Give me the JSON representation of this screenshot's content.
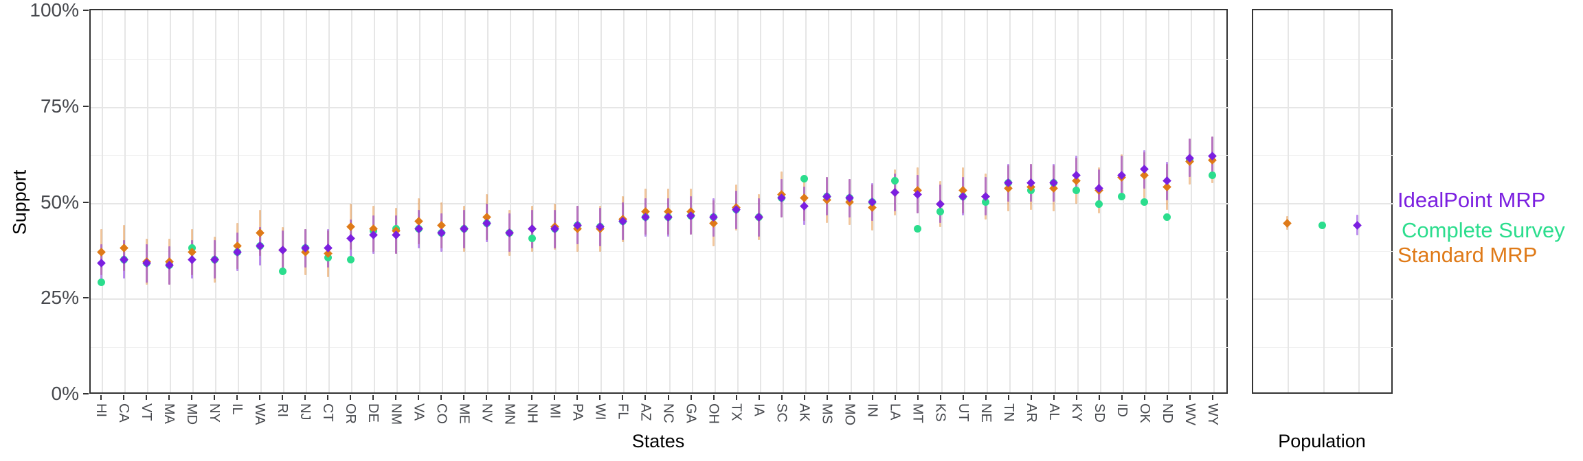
{
  "chart_data": {
    "type": "scatter",
    "title": "",
    "xlabel": "States",
    "ylabel": "Support",
    "ylim": [
      0,
      100
    ],
    "grid": true,
    "y_ticks": [
      {
        "value": 0,
        "label": "0%"
      },
      {
        "value": 25,
        "label": "25%"
      },
      {
        "value": 50,
        "label": "50%"
      },
      {
        "value": 75,
        "label": "75%"
      },
      {
        "value": 100,
        "label": "100%"
      }
    ],
    "y_minor_gridlines": [
      12.5,
      37.5,
      62.5,
      87.5
    ],
    "categories": [
      "HI",
      "CA",
      "VT",
      "MA",
      "MD",
      "NY",
      "IL",
      "WA",
      "RI",
      "NJ",
      "CT",
      "OR",
      "DE",
      "NM",
      "VA",
      "CO",
      "ME",
      "NV",
      "MN",
      "NH",
      "MI",
      "PA",
      "WI",
      "FL",
      "AZ",
      "NC",
      "GA",
      "OH",
      "TX",
      "IA",
      "SC",
      "AK",
      "MS",
      "MO",
      "IN",
      "LA",
      "MT",
      "KS",
      "UT",
      "NE",
      "TN",
      "AR",
      "AL",
      "KY",
      "SD",
      "ID",
      "OK",
      "ND",
      "WV",
      "WY"
    ],
    "series": [
      {
        "name": "IdealPoint MRP",
        "key": "idealpoint_mrp",
        "marker": "diamond",
        "values": [
          34,
          35,
          34,
          33.5,
          35,
          35,
          37,
          38.5,
          37.5,
          38,
          38,
          40.5,
          41.5,
          41.5,
          43,
          42,
          43,
          44.5,
          42,
          43,
          43,
          44,
          43.5,
          45,
          46,
          46,
          46.5,
          46,
          48,
          46,
          51,
          49,
          51.5,
          51,
          50,
          52.5,
          52,
          49.5,
          51.5,
          51.5,
          55,
          55,
          55,
          57,
          53.5,
          57,
          58.5,
          55.5,
          61.5,
          62
        ]
      },
      {
        "name": "Standard MRP",
        "key": "standard_mrp",
        "marker": "diamond",
        "values": [
          37,
          38,
          34.5,
          34.5,
          37,
          35,
          38.5,
          42,
          37.5,
          37,
          36.5,
          43.5,
          43,
          42.5,
          45,
          44,
          43,
          46,
          42,
          43,
          43.5,
          43,
          43,
          45.5,
          47.5,
          47.5,
          47.5,
          44.5,
          48.5,
          46,
          52,
          51,
          50.5,
          50,
          48.5,
          52.5,
          53,
          49.5,
          53,
          51.5,
          53.5,
          54,
          53.5,
          55.5,
          53,
          56.5,
          57,
          54,
          60.5,
          61
        ]
      },
      {
        "name": "Complete Survey",
        "key": "complete_survey",
        "marker": "circle",
        "values": [
          29,
          35,
          34,
          33.5,
          38,
          35,
          37,
          38.5,
          32,
          38,
          35.5,
          35,
          42.5,
          43,
          43,
          42,
          43,
          44.5,
          42,
          40.5,
          43,
          44,
          43.5,
          45,
          46,
          46,
          46.5,
          46,
          48,
          46,
          51,
          56,
          51.5,
          51,
          50,
          55.5,
          43,
          47.5,
          51.5,
          50,
          55,
          53,
          55,
          53,
          49.5,
          51.5,
          50,
          46,
          61,
          57
        ]
      }
    ],
    "ci_half_width": {
      "idealpoint_mrp": 5,
      "standard_mrp": 6
    },
    "population_panel": {
      "xlabel": "Population",
      "order": [
        "standard_mrp",
        "complete_survey",
        "idealpoint_mrp"
      ],
      "values": {
        "standard_mrp": 44.5,
        "complete_survey": 44,
        "idealpoint_mrp": 44
      },
      "ci_half_width": {
        "standard_mrp": 1.8,
        "idealpoint_mrp": 2.7
      }
    },
    "legend": [
      {
        "label": "IdealPoint MRP",
        "key": "idealpoint_mrp"
      },
      {
        "label": "Complete Survey",
        "key": "complete_survey"
      },
      {
        "label": "Standard MRP",
        "key": "standard_mrp"
      }
    ],
    "colors": {
      "idealpoint_mrp": "#7B1FE0",
      "complete_survey": "#2BDD8D",
      "standard_mrp": "#DF7A18",
      "idealpoint_ci": "rgba(123,31,224,0.5)",
      "standard_ci": "rgba(223,122,24,0.42)",
      "axis_text": "#46484D",
      "grid_major": "#E6E6E6",
      "grid_minor": "#F0F0F0",
      "panel_border": "#333333"
    }
  }
}
